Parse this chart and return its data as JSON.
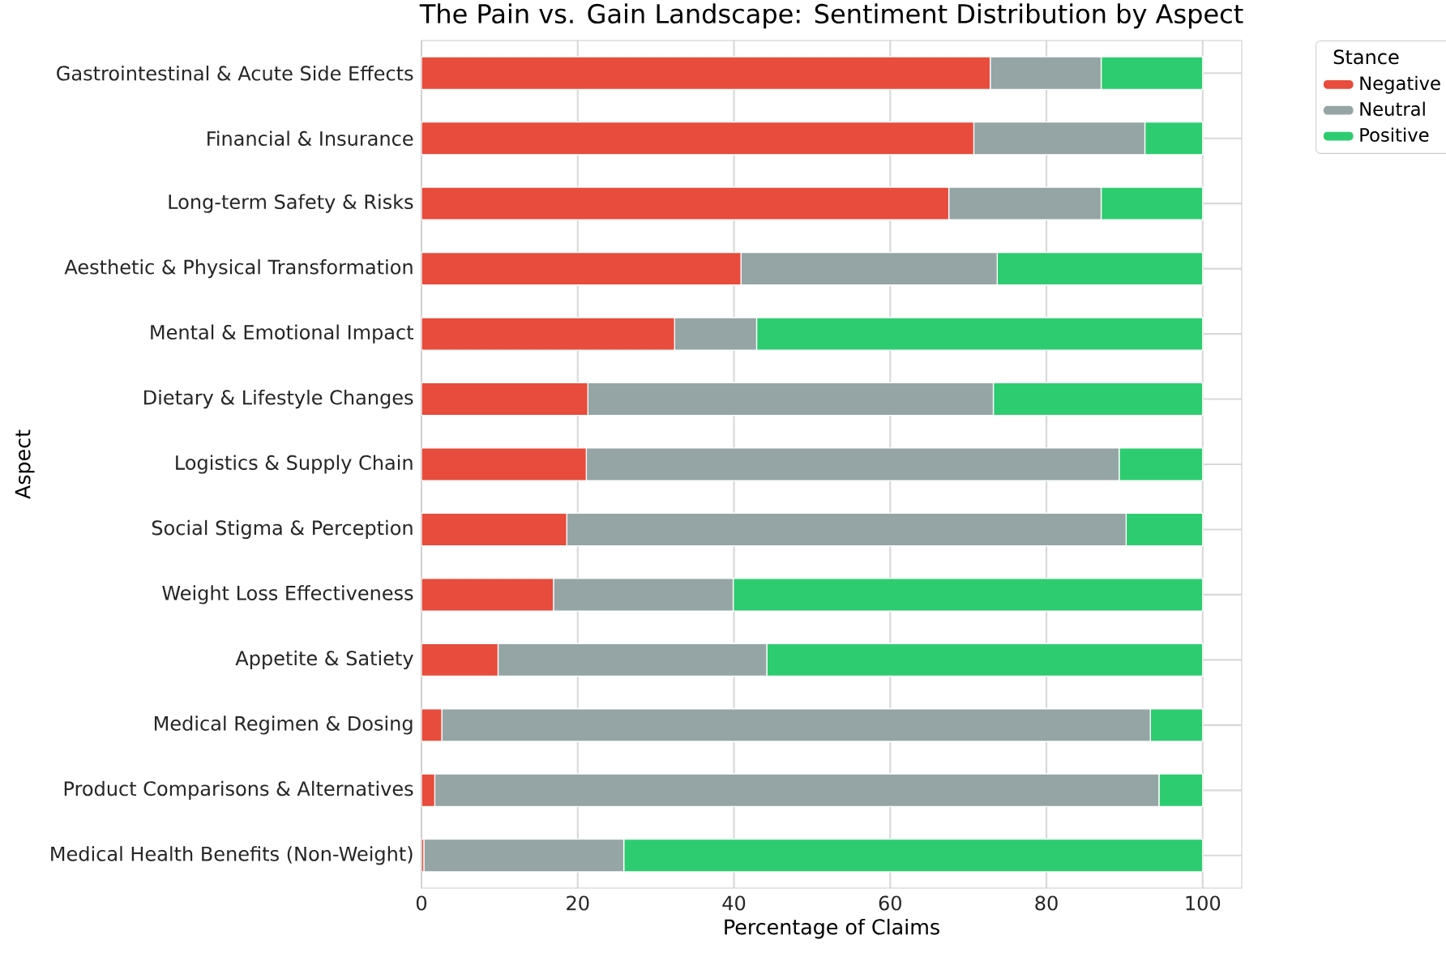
{
  "chart_data": {
    "type": "bar",
    "orientation": "horizontal",
    "stacked": true,
    "title": "The Pain vs. Gain Landscape: Sentiment Distribution by Aspect",
    "xlabel": "Percentage of Claims",
    "ylabel": "Aspect",
    "legend_title": "Stance",
    "categories": [
      "Gastrointestinal & Acute Side Effects",
      "Financial & Insurance",
      "Long-term Safety & Risks",
      "Aesthetic & Physical Transformation",
      "Mental & Emotional Impact",
      "Dietary & Lifestyle Changes",
      "Logistics & Supply Chain",
      "Social Stigma & Perception",
      "Weight Loss Effectiveness",
      "Appetite & Satiety",
      "Medical Regimen & Dosing",
      "Product Comparisons & Alternatives",
      "Medical Health Benefits (Non-Weight)"
    ],
    "series": [
      {
        "name": "Negative",
        "color": "#e74c3c",
        "values": [
          72.8,
          70.7,
          67.5,
          40.9,
          32.4,
          21.3,
          21.1,
          18.6,
          16.9,
          9.8,
          2.6,
          1.7,
          0.3
        ]
      },
      {
        "name": "Neutral",
        "color": "#95a5a6",
        "values": [
          14.2,
          21.9,
          19.5,
          32.8,
          10.5,
          51.9,
          68.2,
          71.6,
          23.0,
          34.4,
          90.7,
          92.7,
          25.6
        ]
      },
      {
        "name": "Positive",
        "color": "#2ecc71",
        "values": [
          13.0,
          7.4,
          13.0,
          26.3,
          57.1,
          26.8,
          10.7,
          9.8,
          60.1,
          55.8,
          6.7,
          5.6,
          74.1
        ]
      }
    ],
    "xlim": [
      0,
      105
    ],
    "xticks": [
      0,
      20,
      40,
      60,
      80,
      100
    ],
    "grid": true,
    "legend": "top right"
  }
}
